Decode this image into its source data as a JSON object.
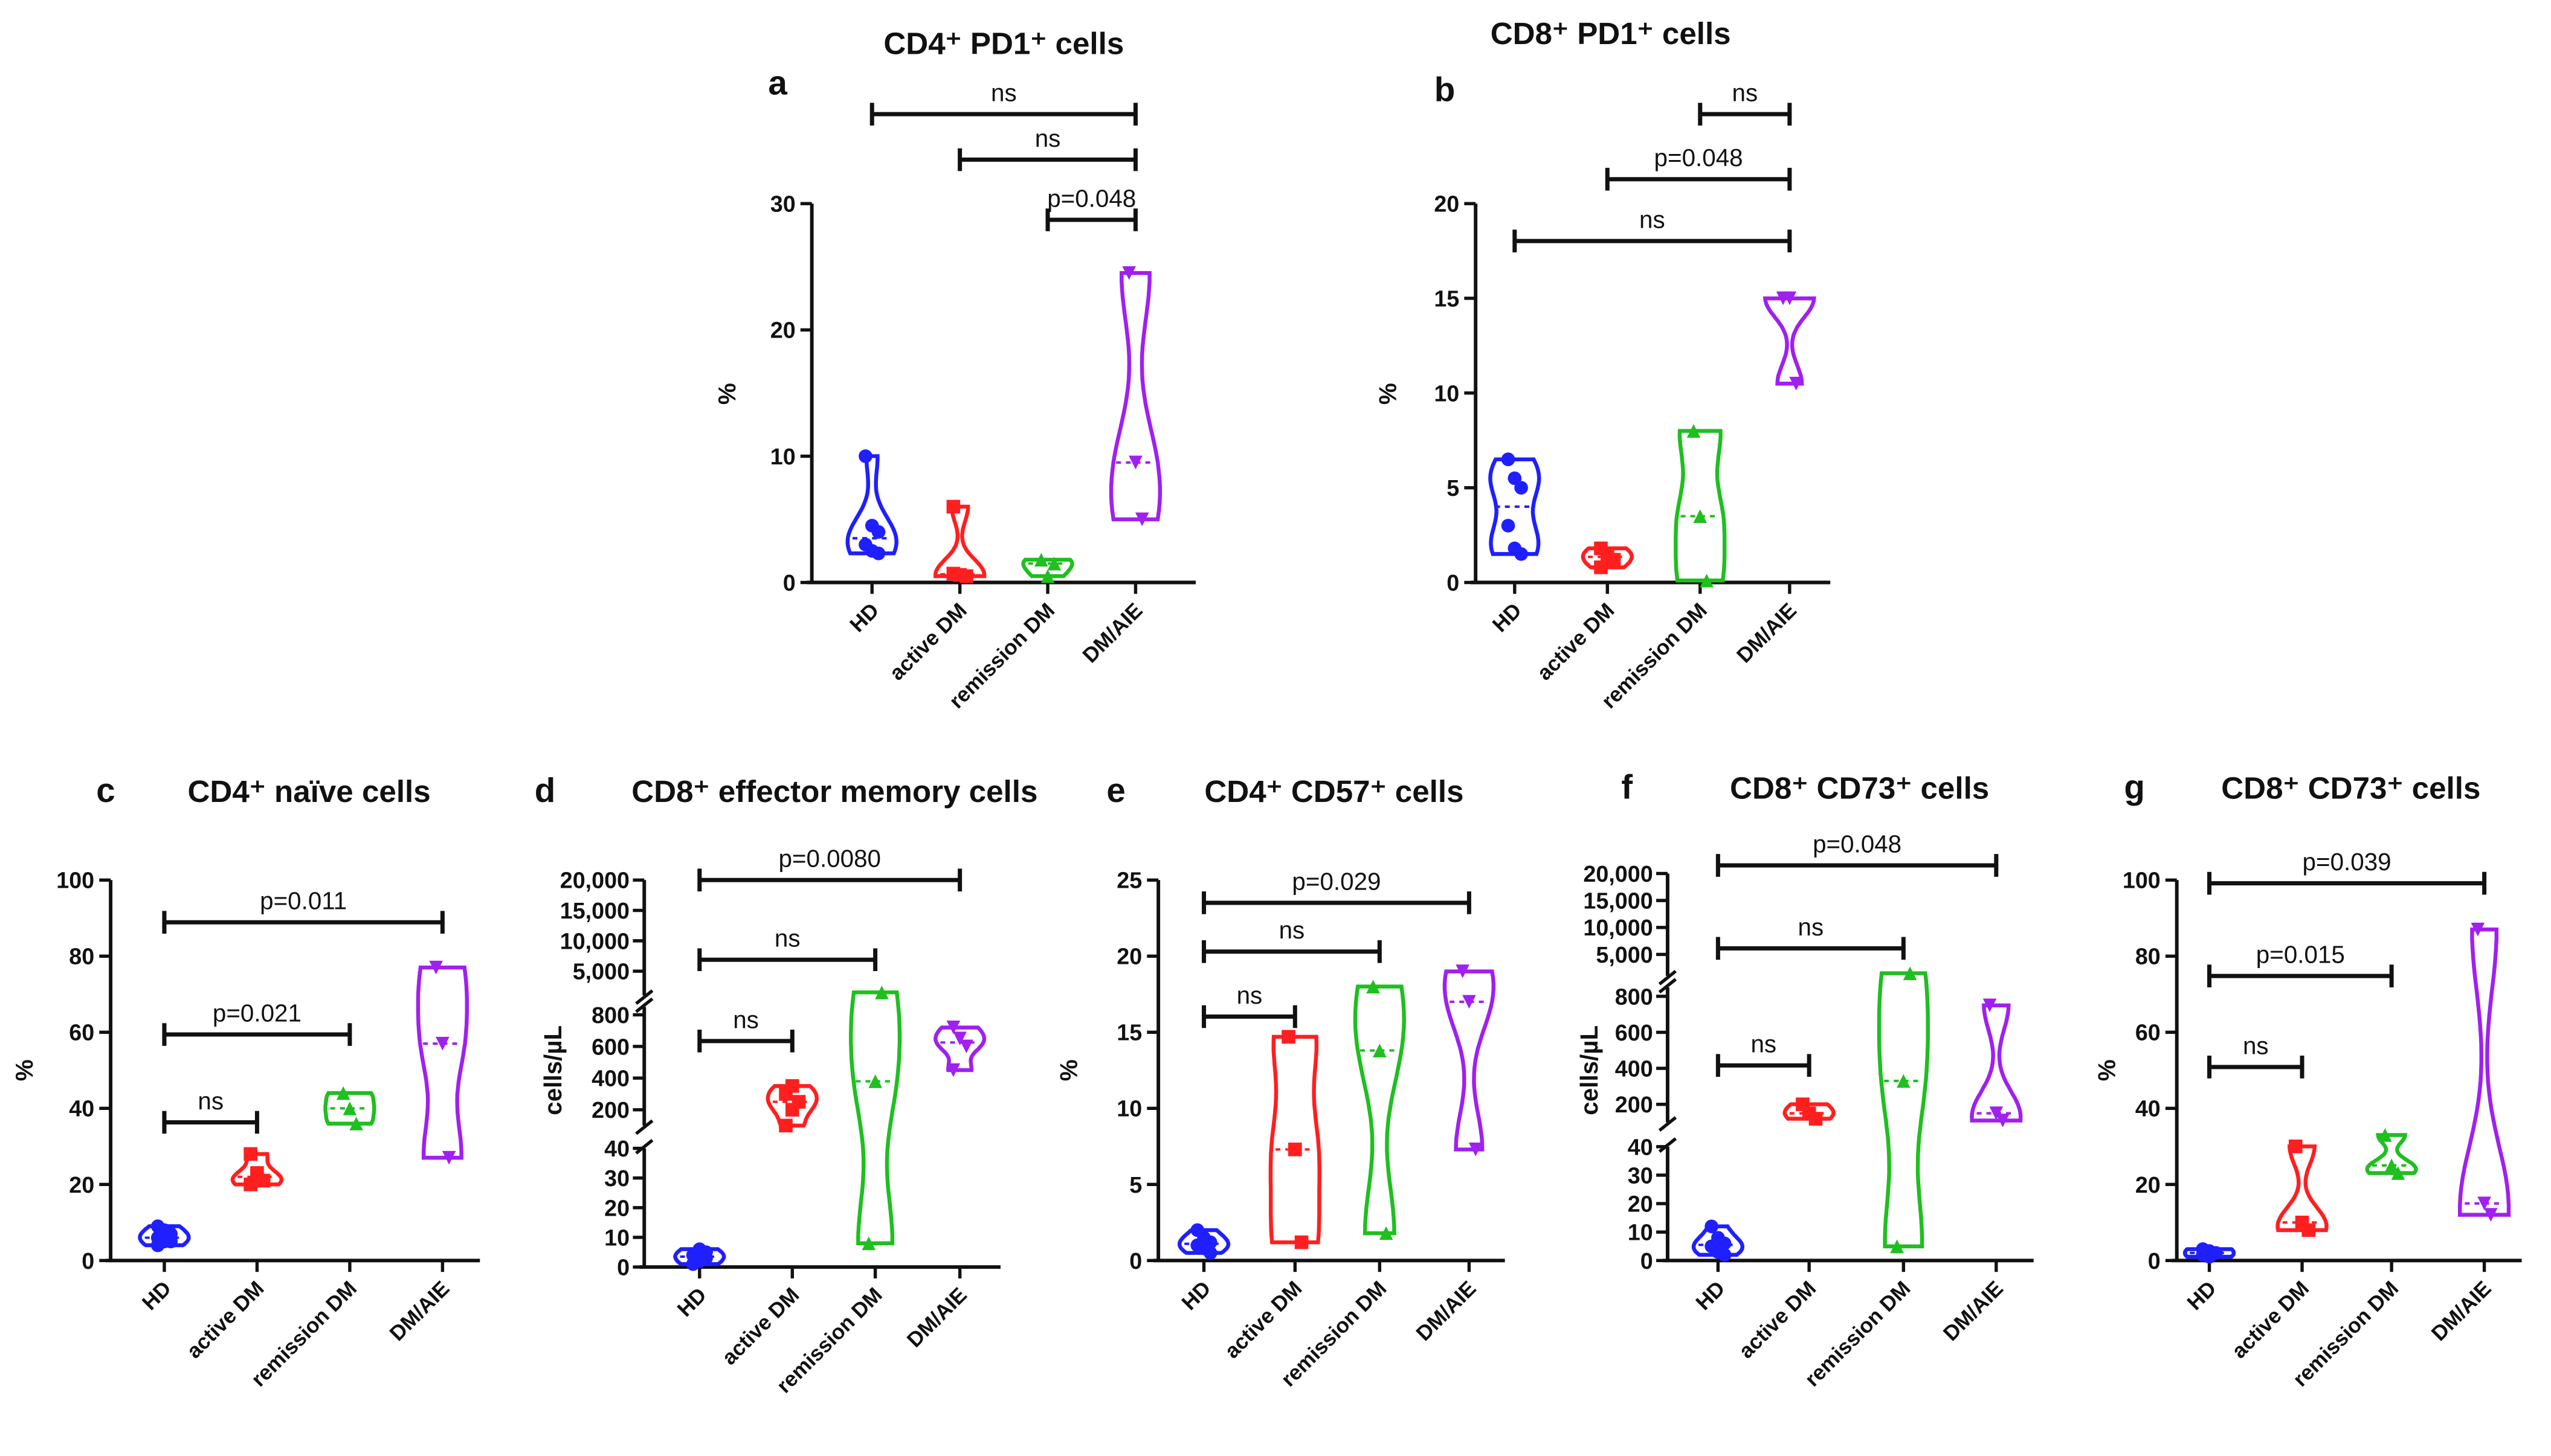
{
  "chart_data": [
    {
      "id": "a",
      "type": "violin",
      "letter": "a",
      "title": "CD4⁺ PD1⁺ cells",
      "ylabel": "%",
      "ylim": [
        0,
        30
      ],
      "yticks": [
        0,
        10,
        20,
        30
      ],
      "categories": [
        "HD",
        "active DM",
        "remission DM",
        "DM/AIE"
      ],
      "series": [
        {
          "name": "HD",
          "values": [
            10,
            4.5,
            4,
            3,
            2.5,
            2.3
          ]
        },
        {
          "name": "active DM",
          "values": [
            6,
            0.6,
            0.5,
            0.7
          ]
        },
        {
          "name": "remission DM",
          "values": [
            1.8,
            0.5,
            1.5
          ]
        },
        {
          "name": "DM/AIE",
          "values": [
            24.5,
            9.5,
            5
          ]
        }
      ],
      "comparisons": [
        {
          "from": 0,
          "to": 3,
          "label": "ns"
        },
        {
          "from": 1,
          "to": 3,
          "label": "ns"
        },
        {
          "from": 2,
          "to": 3,
          "label": "p=0.048"
        }
      ]
    },
    {
      "id": "b",
      "type": "violin",
      "letter": "b",
      "title": "CD8⁺ PD1⁺ cells",
      "ylabel": "%",
      "ylim": [
        0,
        20
      ],
      "yticks": [
        0,
        5,
        10,
        15,
        20
      ],
      "categories": [
        "HD",
        "active DM",
        "remission DM",
        "DM/AIE"
      ],
      "series": [
        {
          "name": "HD",
          "values": [
            6.5,
            5.5,
            5,
            3,
            1.8,
            1.5
          ]
        },
        {
          "name": "active DM",
          "values": [
            1.8,
            1.5,
            1.2,
            0.8
          ]
        },
        {
          "name": "remission DM",
          "values": [
            8,
            3.5,
            0.1
          ]
        },
        {
          "name": "DM/AIE",
          "values": [
            15,
            15,
            10.5
          ]
        }
      ],
      "comparisons": [
        {
          "from": 2,
          "to": 3,
          "label": "ns"
        },
        {
          "from": 1,
          "to": 3,
          "label": "p=0.048"
        },
        {
          "from": 0,
          "to": 3,
          "label": "ns"
        }
      ]
    },
    {
      "id": "c",
      "type": "violin",
      "letter": "c",
      "title": "CD4⁺ naïve cells",
      "ylabel": "%",
      "ylim": [
        0,
        100
      ],
      "yticks": [
        0,
        20,
        40,
        60,
        80,
        100
      ],
      "categories": [
        "HD",
        "active DM",
        "remission DM",
        "DM/AIE"
      ],
      "series": [
        {
          "name": "HD",
          "values": [
            9,
            8,
            7,
            6,
            5,
            5,
            4
          ]
        },
        {
          "name": "active DM",
          "values": [
            28,
            23,
            21,
            20
          ]
        },
        {
          "name": "remission DM",
          "values": [
            44,
            40,
            36
          ]
        },
        {
          "name": "DM/AIE",
          "values": [
            77,
            57,
            27
          ]
        }
      ],
      "comparisons": [
        {
          "from": 0,
          "to": 3,
          "label": "p=0.011"
        },
        {
          "from": 0,
          "to": 2,
          "label": "p=0.021"
        },
        {
          "from": 0,
          "to": 1,
          "label": "ns"
        }
      ]
    },
    {
      "id": "d",
      "type": "violin",
      "letter": "d",
      "title": "CD8⁺ effector memory cells",
      "ylabel": "cells/µL",
      "broken_axis": true,
      "segments": [
        {
          "domain": [
            0,
            40
          ],
          "ticks": [
            "0",
            "10",
            "20",
            "30",
            "40"
          ],
          "tickvals": [
            0,
            10,
            20,
            30,
            40
          ]
        },
        {
          "domain": [
            100,
            850
          ],
          "ticks": [
            "200",
            "400",
            "600",
            "800"
          ],
          "tickvals": [
            200,
            400,
            600,
            800
          ]
        },
        {
          "domain": [
            1000,
            20000
          ],
          "ticks": [
            "5,000",
            "10,000",
            "15,000",
            "20,000"
          ],
          "tickvals": [
            5000,
            10000,
            15000,
            20000
          ]
        }
      ],
      "categories": [
        "HD",
        "active DM",
        "remission DM",
        "DM/AIE"
      ],
      "series": [
        {
          "name": "HD",
          "values": [
            1,
            2,
            3,
            4,
            6,
            5
          ]
        },
        {
          "name": "active DM",
          "values": [
            100,
            200,
            250,
            300,
            350
          ]
        },
        {
          "name": "remission DM",
          "values": [
            8,
            380,
            1500
          ]
        },
        {
          "name": "DM/AIE",
          "values": [
            720,
            650,
            600,
            450
          ]
        }
      ],
      "comparisons": [
        {
          "from": 0,
          "to": 3,
          "label": "p=0.0080"
        },
        {
          "from": 0,
          "to": 2,
          "label": "ns"
        },
        {
          "from": 0,
          "to": 1,
          "label": "ns"
        }
      ]
    },
    {
      "id": "e",
      "type": "violin",
      "letter": "e",
      "title": "CD4⁺ CD57⁺ cells",
      "ylabel": "%",
      "ylim": [
        0,
        25
      ],
      "yticks": [
        0,
        5,
        10,
        15,
        20,
        25
      ],
      "categories": [
        "HD",
        "active DM",
        "remission DM",
        "DM/AIE"
      ],
      "series": [
        {
          "name": "HD",
          "values": [
            2,
            1.5,
            1.2,
            1,
            0.8,
            0.5
          ]
        },
        {
          "name": "active DM",
          "values": [
            14.7,
            7.3,
            1.2
          ]
        },
        {
          "name": "remission DM",
          "values": [
            18,
            13.8,
            1.8
          ]
        },
        {
          "name": "DM/AIE",
          "values": [
            19,
            17,
            7.3
          ]
        }
      ],
      "comparisons": [
        {
          "from": 0,
          "to": 3,
          "label": "p=0.029"
        },
        {
          "from": 0,
          "to": 2,
          "label": "ns"
        },
        {
          "from": 0,
          "to": 1,
          "label": "ns"
        }
      ]
    },
    {
      "id": "f",
      "type": "violin",
      "letter": "f",
      "title": "CD8⁺ CD73⁺ cells",
      "ylabel": "cells/µL",
      "broken_axis": true,
      "segments": [
        {
          "domain": [
            0,
            40
          ],
          "ticks": [
            "0",
            "10",
            "20",
            "30",
            "40"
          ],
          "tickvals": [
            0,
            10,
            20,
            30,
            40
          ]
        },
        {
          "domain": [
            100,
            850
          ],
          "ticks": [
            "200",
            "400",
            "600",
            "800"
          ],
          "tickvals": [
            200,
            400,
            600,
            800
          ]
        },
        {
          "domain": [
            1000,
            20000
          ],
          "ticks": [
            "5,000",
            "10,000",
            "15,000",
            "20,000"
          ],
          "tickvals": [
            5000,
            10000,
            15000,
            20000
          ]
        }
      ],
      "categories": [
        "HD",
        "active DM",
        "remission DM",
        "DM/AIE"
      ],
      "series": [
        {
          "name": "HD",
          "values": [
            12,
            8,
            6,
            5,
            3,
            2
          ]
        },
        {
          "name": "active DM",
          "values": [
            200,
            150,
            120
          ]
        },
        {
          "name": "remission DM",
          "values": [
            5,
            330,
            1500
          ]
        },
        {
          "name": "DM/AIE",
          "values": [
            750,
            150,
            110
          ]
        }
      ],
      "comparisons": [
        {
          "from": 0,
          "to": 3,
          "label": "p=0.048"
        },
        {
          "from": 0,
          "to": 2,
          "label": "ns"
        },
        {
          "from": 0,
          "to": 1,
          "label": "ns"
        }
      ]
    },
    {
      "id": "g",
      "type": "violin",
      "letter": "g",
      "title": "CD8⁺ CD73⁺ cells",
      "ylabel": "%",
      "ylim": [
        0,
        100
      ],
      "yticks": [
        0,
        20,
        40,
        60,
        80,
        100
      ],
      "categories": [
        "HD",
        "active DM",
        "remission DM",
        "DM/AIE"
      ],
      "series": [
        {
          "name": "HD",
          "values": [
            3,
            2.5,
            2,
            1.5,
            1
          ]
        },
        {
          "name": "active DM",
          "values": [
            30,
            10,
            8
          ]
        },
        {
          "name": "remission DM",
          "values": [
            33,
            25,
            23
          ]
        },
        {
          "name": "DM/AIE",
          "values": [
            87,
            15,
            12
          ]
        }
      ],
      "comparisons": [
        {
          "from": 0,
          "to": 3,
          "label": "p=0.039"
        },
        {
          "from": 0,
          "to": 2,
          "label": "p=0.015"
        },
        {
          "from": 0,
          "to": 1,
          "label": "ns"
        }
      ]
    }
  ],
  "colors": {
    "HD": "#1f1fff",
    "active DM": "#ff1f1f",
    "remission DM": "#1fbf1f",
    "DM/AIE": "#a020f0"
  }
}
